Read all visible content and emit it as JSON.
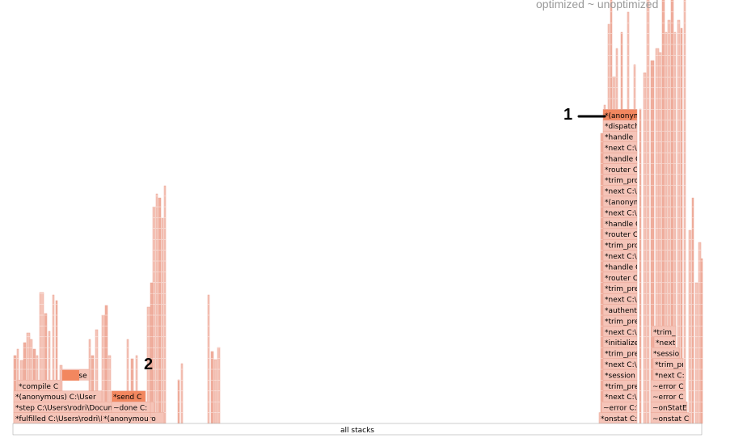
{
  "legend": {
    "text": "optimized ~ unoptimized"
  },
  "callouts": {
    "first": "1",
    "second": "2"
  },
  "chart_data": {
    "type": "flamegraph",
    "title": "",
    "root_label": "all stacks",
    "colors": {
      "highlight": "#f2875f",
      "frame_light": "#f5c4b8",
      "frame_mid": "#f0ad9c",
      "frame_stroke": "#e9a594",
      "root_fill": "#ffffff",
      "root_stroke": "#9a9a9a",
      "callout_line": "#000000"
    },
    "labeled_stacks": [
      {
        "name": "left-stack",
        "frames": [
          {
            "label": "*fulfilled C:\\Users\\rodri\\Documents\\Pro"
          },
          {
            "label": "*step C:\\Users\\rodri\\Documents\\Pro"
          },
          {
            "label": "*(anonymous) C:\\User"
          },
          {
            "label": "*compile C"
          },
          {
            "label": "*parse"
          }
        ]
      },
      {
        "name": "middle-left-stack",
        "frames": [
          {
            "label": "*(anonymou"
          },
          {
            "label": "~done C:"
          },
          {
            "label": "*send C",
            "highlight": true
          }
        ]
      },
      {
        "name": "right-stack-a",
        "frames": [
          {
            "label": "*onstat C:\\Us"
          },
          {
            "label": "~error C:\\Us"
          },
          {
            "label": "*next C:\\Us"
          },
          {
            "label": "*trim_prefix"
          },
          {
            "label": "*session C:\\"
          },
          {
            "label": "*next C:\\U"
          },
          {
            "label": "*trim_pref"
          },
          {
            "label": "*initialize"
          },
          {
            "label": "*next C:\\"
          },
          {
            "label": "*trim_pre"
          },
          {
            "label": "*authenti"
          },
          {
            "label": "*next C:\\"
          },
          {
            "label": "*trim_pre"
          },
          {
            "label": "*router C"
          },
          {
            "label": "*handle C"
          },
          {
            "label": "*next C:\\"
          },
          {
            "label": "*trim_pro"
          },
          {
            "label": "*router C"
          },
          {
            "label": "*handle C"
          },
          {
            "label": "*next C:\\"
          },
          {
            "label": "*(anonym"
          },
          {
            "label": "*next C:\\"
          },
          {
            "label": "*trim_pro"
          },
          {
            "label": "*router C"
          },
          {
            "label": "*handle C"
          },
          {
            "label": "*next C:\\"
          },
          {
            "label": "*handle"
          },
          {
            "label": "*dispatch"
          },
          {
            "label": "*(anonym",
            "highlight": true
          }
        ]
      },
      {
        "name": "right-stack-b",
        "frames": [
          {
            "label": "~onstat C"
          },
          {
            "label": "~onStatE"
          },
          {
            "label": "~error C"
          },
          {
            "label": "~error C"
          },
          {
            "label": "*next C:"
          },
          {
            "label": "*trim_pr"
          },
          {
            "label": "*sessio"
          },
          {
            "label": "*next"
          },
          {
            "label": "*trim_"
          }
        ]
      }
    ]
  }
}
